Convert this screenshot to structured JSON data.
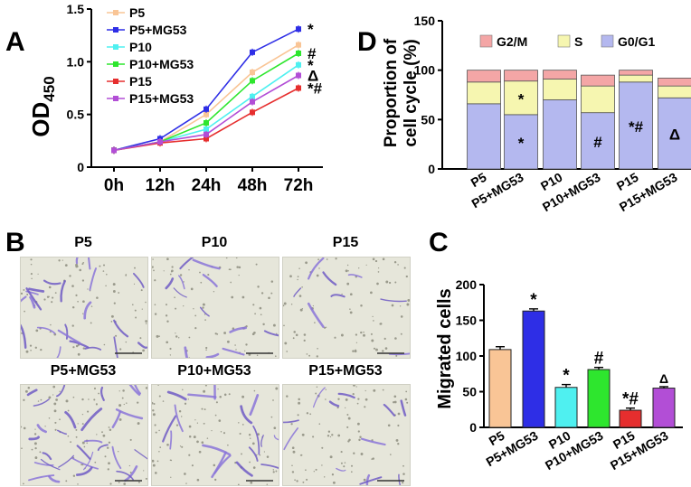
{
  "panel_letters": {
    "a": "A",
    "b": "B",
    "c": "C",
    "d": "D"
  },
  "colors": {
    "P5": "#f9c596",
    "P5+MG53": "#2e2ee6",
    "P10": "#4ff0f0",
    "P10+MG53": "#2ee62e",
    "P15": "#e62e2e",
    "P15+MG53": "#b24ed6",
    "G2/M": "#f4a6a6",
    "S": "#f6f6b0",
    "G0/G1": "#b4b8ef"
  },
  "chart_data": [
    {
      "id": "A",
      "type": "line",
      "title": "",
      "xlabel": "",
      "ylabel": "OD",
      "ylabel_sub": "450",
      "x": [
        "0h",
        "12h",
        "24h",
        "48h",
        "72h"
      ],
      "ylim": [
        0,
        1.5
      ],
      "yticks": [
        "0",
        "0.5",
        "1.0",
        "1.5"
      ],
      "legend_position": "top-left",
      "series": [
        {
          "name": "P5",
          "values": [
            0.16,
            0.24,
            0.5,
            0.9,
            1.16
          ],
          "annotation": ""
        },
        {
          "name": "P5+MG53",
          "values": [
            0.16,
            0.27,
            0.55,
            1.09,
            1.31
          ],
          "annotation": "*"
        },
        {
          "name": "P10",
          "values": [
            0.16,
            0.24,
            0.36,
            0.67,
            0.97
          ],
          "annotation": "*"
        },
        {
          "name": "P10+MG53",
          "values": [
            0.16,
            0.24,
            0.42,
            0.82,
            1.08
          ],
          "annotation": "#"
        },
        {
          "name": "P15",
          "values": [
            0.16,
            0.23,
            0.27,
            0.52,
            0.75
          ],
          "annotation": "*#"
        },
        {
          "name": "P15+MG53",
          "values": [
            0.16,
            0.24,
            0.31,
            0.62,
            0.87
          ],
          "annotation": "Δ"
        }
      ]
    },
    {
      "id": "C",
      "type": "bar",
      "title": "",
      "xlabel": "",
      "ylabel": "Migrated cells",
      "categories": [
        "P5",
        "P5+MG53",
        "P10",
        "P10+MG53",
        "P15",
        "P15+MG53"
      ],
      "values": [
        109,
        163,
        56,
        81,
        24,
        55
      ],
      "errors": [
        4,
        3,
        4,
        3,
        3,
        2
      ],
      "annotations": [
        "",
        "*",
        "*",
        "#",
        "*#",
        "Δ"
      ],
      "ylim": [
        0,
        200
      ],
      "yticks": [
        "0",
        "50",
        "100",
        "150",
        "200"
      ]
    },
    {
      "id": "D",
      "type": "bar",
      "stacked": true,
      "title": "",
      "xlabel": "",
      "ylabel": "Proportion of cell cycle (%)",
      "ylabel_lines": [
        "Proportion of",
        "cell cycle (%)"
      ],
      "categories": [
        "P5",
        "P5+MG53",
        "P10",
        "P10+MG53",
        "P15",
        "P15+MG53"
      ],
      "ylim": [
        0,
        150
      ],
      "yticks": [
        "0",
        "50",
        "100",
        "150"
      ],
      "legend_position": "top",
      "series": [
        {
          "name": "G0/G1",
          "values": [
            66,
            55,
            70,
            57,
            88,
            72
          ],
          "annotations": [
            "",
            "*",
            "",
            "#",
            "*#",
            "Δ"
          ]
        },
        {
          "name": "S",
          "values": [
            22,
            34,
            21,
            27,
            7,
            12
          ],
          "annotations": [
            "",
            "*",
            "",
            "",
            "",
            ""
          ]
        },
        {
          "name": "G2/M",
          "values": [
            12,
            11,
            9,
            11,
            5,
            8
          ],
          "annotations": [
            "",
            "",
            "",
            "",
            "",
            ""
          ]
        }
      ]
    }
  ],
  "panel_b": {
    "images": [
      {
        "label": "P5",
        "density": 1.0
      },
      {
        "label": "P10",
        "density": 0.55
      },
      {
        "label": "P15",
        "density": 0.35
      },
      {
        "label": "P5+MG53",
        "density": 1.3
      },
      {
        "label": "P10+MG53",
        "density": 0.75
      },
      {
        "label": "P15+MG53",
        "density": 0.55
      }
    ]
  }
}
